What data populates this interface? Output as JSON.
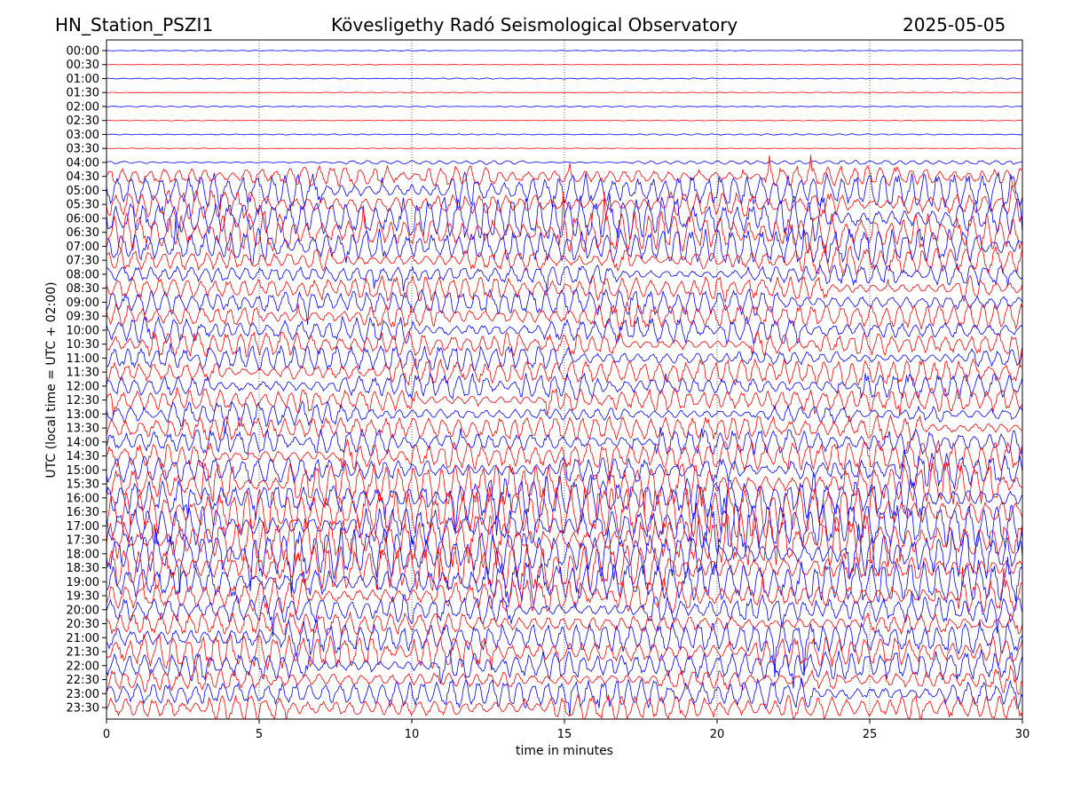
{
  "header": {
    "station": "HN_Station_PSZI1",
    "observatory": "Kövesligethy Radó Seismological Observatory",
    "date": "2025-05-05"
  },
  "chart_data": {
    "type": "line",
    "title": "Kövesligethy Radó Seismological Observatory",
    "xlabel": "time in minutes",
    "ylabel": "UTC (local time = UTC + 02:00)",
    "xlim": [
      0,
      30
    ],
    "xticks": [
      "0",
      "5",
      "10",
      "15",
      "20",
      "25",
      "30"
    ],
    "grid": "vertical dotted",
    "row_labels": [
      "00:00",
      "00:30",
      "01:00",
      "01:30",
      "02:00",
      "02:30",
      "03:00",
      "03:30",
      "04:00",
      "04:30",
      "05:00",
      "05:30",
      "06:00",
      "06:30",
      "07:00",
      "07:30",
      "08:00",
      "08:30",
      "09:00",
      "09:30",
      "10:00",
      "10:30",
      "11:00",
      "11:30",
      "12:00",
      "12:30",
      "13:00",
      "13:30",
      "14:00",
      "14:30",
      "15:00",
      "15:30",
      "16:00",
      "16:30",
      "17:00",
      "17:30",
      "18:00",
      "18:30",
      "19:00",
      "19:30",
      "20:00",
      "20:30",
      "21:00",
      "21:30",
      "22:00",
      "22:30",
      "23:00",
      "23:30"
    ],
    "series_colors": {
      "hour": "#0000ff",
      "half_hour": "#ff0000"
    },
    "relative_amplitude": [
      0.3,
      0.3,
      0.5,
      0.3,
      0.4,
      0.3,
      0.5,
      0.3,
      1.5,
      8,
      14,
      14,
      16,
      16,
      14,
      12,
      8,
      10,
      10,
      10,
      10,
      10,
      10,
      10,
      10,
      10,
      9,
      9,
      10,
      12,
      14,
      16,
      18,
      20,
      20,
      20,
      20,
      18,
      16,
      13,
      12,
      12,
      12,
      12,
      12,
      11,
      11,
      10
    ]
  }
}
